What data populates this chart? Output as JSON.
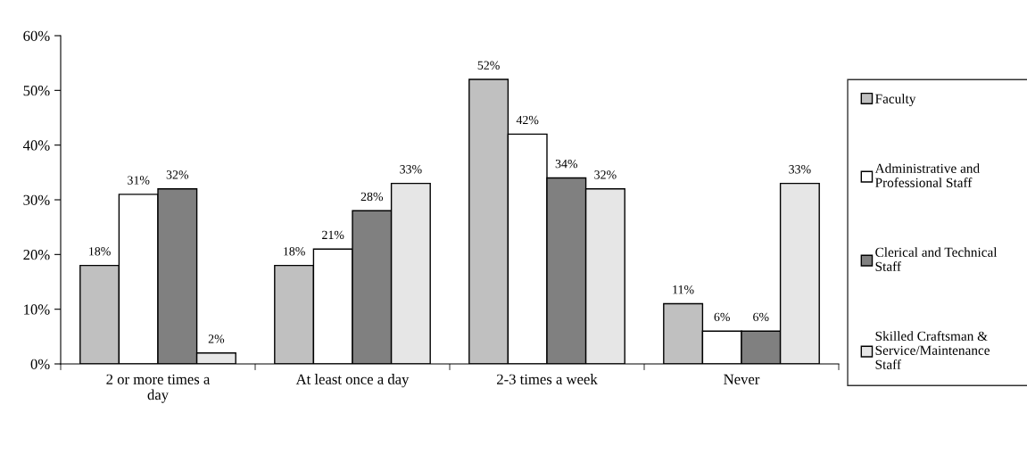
{
  "chart_data": {
    "type": "bar",
    "categories": [
      "2 or more times a\nday",
      "At least once a day",
      "2-3 times a week",
      "Never"
    ],
    "series": [
      {
        "name": "Faculty",
        "color": "#c0c0c0",
        "values": [
          18,
          18,
          52,
          11
        ],
        "value_labels": [
          "18%",
          "18%",
          "52%",
          "11%"
        ]
      },
      {
        "name": "Administrative and\nProfessional Staff",
        "color": "#ffffff",
        "values": [
          31,
          21,
          42,
          6
        ],
        "value_labels": [
          "31%",
          "21%",
          "42%",
          "6%"
        ]
      },
      {
        "name": "Clerical and Technical\nStaff",
        "color": "#808080",
        "values": [
          32,
          28,
          34,
          6
        ],
        "value_labels": [
          "32%",
          "28%",
          "34%",
          "6%"
        ]
      },
      {
        "name": "Skilled Craftsman &\nService/Maintenance\nStaff",
        "color": "#e6e6e6",
        "values": [
          2,
          33,
          32,
          33
        ],
        "value_labels": [
          "2%",
          "33%",
          "32%",
          "33%"
        ]
      }
    ],
    "ylim": [
      0,
      60
    ],
    "yticks": [
      {
        "value": 0,
        "label": "0%"
      },
      {
        "value": 10,
        "label": "10%"
      },
      {
        "value": 20,
        "label": "20%"
      },
      {
        "value": 30,
        "label": "30%"
      },
      {
        "value": 40,
        "label": "40%"
      },
      {
        "value": 50,
        "label": "50%"
      },
      {
        "value": 60,
        "label": "60%"
      }
    ],
    "grid": false,
    "legend": "right"
  }
}
